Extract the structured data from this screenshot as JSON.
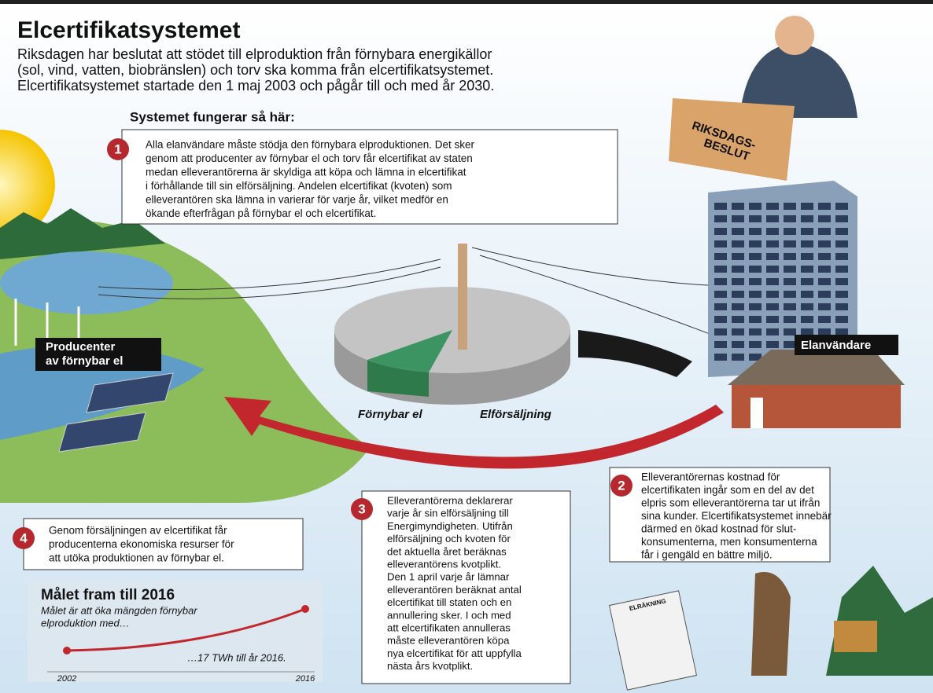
{
  "title": "Elcertifikatsystemet",
  "intro": [
    "Riksdagen har beslutat att stödet till elproduktion från förnybara energikällor",
    "(sol, vind, vatten, biobränslen) och torv ska komma från elcertifikatsystemet.",
    "Elcertifikatsystemet startade den 1 maj 2003 och pågår till och med år 2030."
  ],
  "subtitle": "Systemet fungerar så här:",
  "steps": [
    {
      "number": "1",
      "lines": [
        "Alla elanvändare måste stödja den förnybara elproduktionen. Det sker",
        "genom att producenter av förnybar el och torv får elcertifikat av staten",
        "medan elleverantörerna är skyldiga att köpa och lämna in elcertifikat",
        "i förhållande till sin elförsäljning. Andelen elcertifikat (kvoten) som",
        "elleverantören ska lämna in varierar för varje år, vilket medför en",
        "ökande efterfrågan på förnybar el och elcertifikat."
      ]
    },
    {
      "number": "2",
      "lines": [
        "Elleverantörernas kostnad för",
        "elcertifikaten ingår som en del av det",
        "elpris som elleverantörerna tar ut ifrån",
        "sina kunder. Elcertifikatsystemet innebär",
        "därmed en ökad kostnad för slut-",
        "konsumenterna, men konsumenterna",
        "får i gengäld en bättre miljö."
      ]
    },
    {
      "number": "3",
      "lines": [
        "Elleverantörerna deklarerar",
        "varje år sin elförsäljning till",
        "Energimyndigheten. Utifrån",
        "elförsäljning och kvoten för",
        "det aktuella året beräknas",
        "elleverantörens kvotplikt.",
        "Den 1 april varje år lämnar",
        "elleverantören beräknat antal",
        "elcertifikat till staten och en",
        "annullering sker. I och med",
        "att elcertifikaten annulleras",
        "måste elleverantören köpa",
        "nya elcertifikat för att uppfylla",
        "nästa års kvotplikt."
      ]
    },
    {
      "number": "4",
      "lines": [
        "Genom försäljningen av elcertifikat får",
        "producenterna ekonomiska resurser för",
        "att utöka produktionen av förnybar el."
      ]
    }
  ],
  "labels": {
    "producers": [
      "Producenter",
      "av förnybar el"
    ],
    "consumers": "Elanvändare",
    "renewable": "Förnybar el",
    "sales": "Elförsäljning",
    "decision": [
      "RIKSDAGS-",
      "BESLUT"
    ],
    "bill": "ELRÄKNING"
  },
  "goal": {
    "title": "Målet fram till 2016",
    "lines": [
      "Målet är att öka mängden förnybar",
      "elproduktion med…"
    ],
    "result": "…17 TWh till år 2016.",
    "start": "2002",
    "end": "2016"
  }
}
